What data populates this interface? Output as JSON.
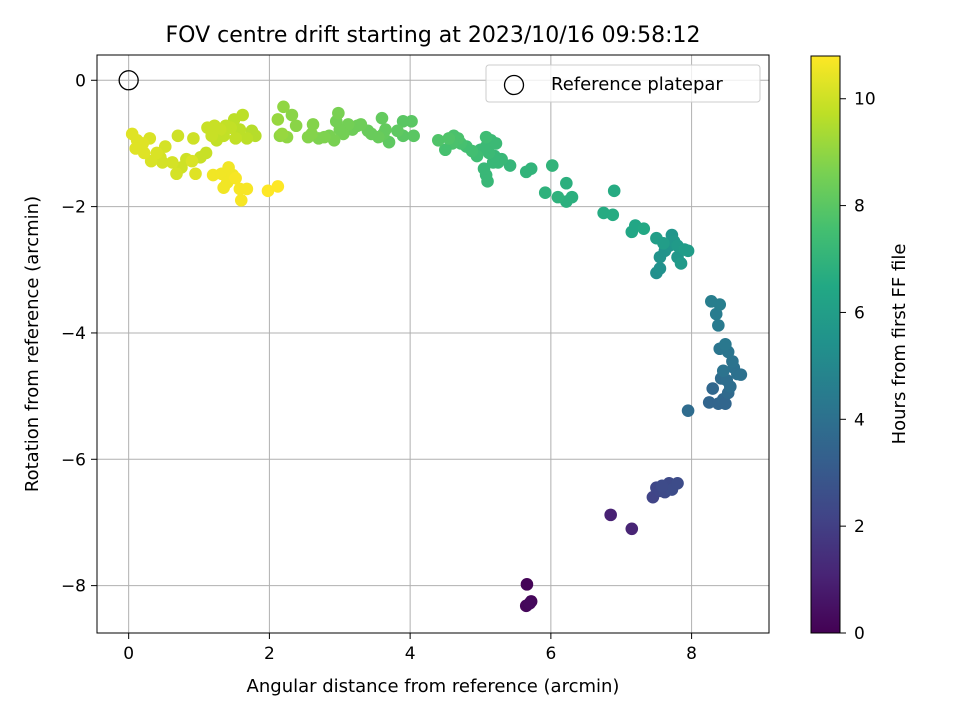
{
  "chart_data": {
    "type": "scatter",
    "title": "FOV centre drift starting at 2023/10/16 09:58:12",
    "xlabel": "Angular distance from reference (arcmin)",
    "ylabel": "Rotation from reference (arcmin)",
    "colorbar_label": "Hours from first FF file",
    "xlim": [
      -0.45,
      9.1
    ],
    "ylim": [
      -8.75,
      0.4
    ],
    "clim": [
      0,
      10.8
    ],
    "xticks": [
      "0",
      "2",
      "4",
      "6",
      "8"
    ],
    "yticks": [
      "0",
      "−2",
      "−4",
      "−6",
      "−8"
    ],
    "cticks": [
      "0",
      "2",
      "4",
      "6",
      "8",
      "10"
    ],
    "grid": true,
    "legend": {
      "position": "top-right",
      "label": "Reference platepar"
    },
    "reference_point": {
      "x": 0,
      "y": 0
    },
    "colormap": "viridis",
    "series": [
      {
        "points": [
          [
            5.66,
            -7.98,
            0.1
          ],
          [
            5.72,
            -8.25,
            0.15
          ],
          [
            5.65,
            -8.32,
            0.2
          ],
          [
            5.7,
            -8.28,
            0.25
          ],
          [
            6.85,
            -6.88,
            1.0
          ],
          [
            7.15,
            -7.1,
            1.1
          ],
          [
            7.45,
            -6.6,
            2.2
          ],
          [
            7.5,
            -6.45,
            2.3
          ],
          [
            7.55,
            -6.5,
            2.3
          ],
          [
            7.62,
            -6.52,
            2.4
          ],
          [
            7.68,
            -6.38,
            2.4
          ],
          [
            7.72,
            -6.48,
            2.5
          ],
          [
            7.8,
            -6.38,
            2.5
          ],
          [
            7.58,
            -6.42,
            2.45
          ],
          [
            7.95,
            -5.23,
            3.8
          ],
          [
            8.25,
            -5.1,
            3.5
          ],
          [
            8.3,
            -4.88,
            3.6
          ],
          [
            8.38,
            -5.12,
            3.5
          ],
          [
            8.45,
            -5.05,
            3.6
          ],
          [
            8.48,
            -5.12,
            3.55
          ],
          [
            8.52,
            -4.95,
            3.7
          ],
          [
            8.42,
            -4.72,
            3.8
          ],
          [
            8.5,
            -4.75,
            3.9
          ],
          [
            8.55,
            -4.85,
            3.9
          ],
          [
            8.6,
            -4.55,
            4.0
          ],
          [
            8.65,
            -4.65,
            4.0
          ],
          [
            8.7,
            -4.66,
            4.0
          ],
          [
            8.58,
            -4.45,
            4.1
          ],
          [
            8.45,
            -4.6,
            4.1
          ],
          [
            8.52,
            -4.3,
            4.2
          ],
          [
            8.4,
            -4.25,
            4.2
          ],
          [
            8.48,
            -4.18,
            4.3
          ],
          [
            8.38,
            -3.88,
            4.4
          ],
          [
            8.35,
            -3.7,
            4.5
          ],
          [
            8.4,
            -3.55,
            4.6
          ],
          [
            8.28,
            -3.5,
            4.6
          ],
          [
            7.5,
            -3.05,
            5.3
          ],
          [
            7.55,
            -2.98,
            5.4
          ],
          [
            7.55,
            -2.8,
            5.5
          ],
          [
            7.62,
            -2.7,
            5.5
          ],
          [
            7.68,
            -2.62,
            5.6
          ],
          [
            7.72,
            -2.45,
            5.6
          ],
          [
            7.75,
            -2.55,
            5.7
          ],
          [
            7.8,
            -2.8,
            5.7
          ],
          [
            7.85,
            -2.9,
            5.8
          ],
          [
            7.8,
            -2.62,
            5.8
          ],
          [
            7.9,
            -2.68,
            5.9
          ],
          [
            7.95,
            -2.7,
            5.9
          ],
          [
            7.5,
            -2.5,
            6.0
          ],
          [
            7.6,
            -2.58,
            5.95
          ],
          [
            7.15,
            -2.4,
            6.4
          ],
          [
            7.2,
            -2.3,
            6.4
          ],
          [
            7.32,
            -2.35,
            6.5
          ],
          [
            6.75,
            -2.1,
            6.6
          ],
          [
            6.88,
            -2.13,
            6.6
          ],
          [
            6.9,
            -1.75,
            6.6
          ],
          [
            6.22,
            -1.92,
            6.8
          ],
          [
            6.3,
            -1.85,
            6.8
          ],
          [
            6.22,
            -1.63,
            6.8
          ],
          [
            6.1,
            -1.85,
            6.9
          ],
          [
            5.92,
            -1.78,
            6.9
          ],
          [
            6.02,
            -1.35,
            7.0
          ],
          [
            5.72,
            -1.4,
            7.0
          ],
          [
            5.65,
            -1.45,
            7.0
          ],
          [
            5.42,
            -1.35,
            7.1
          ],
          [
            5.3,
            -1.25,
            7.2
          ],
          [
            5.25,
            -1.3,
            7.2
          ],
          [
            5.1,
            -1.6,
            7.2
          ],
          [
            5.08,
            -1.5,
            7.2
          ],
          [
            5.05,
            -1.4,
            7.2
          ],
          [
            5.18,
            -1.3,
            7.2
          ],
          [
            5.2,
            -1.2,
            7.2
          ],
          [
            5.12,
            -1.15,
            7.3
          ],
          [
            5.0,
            -1.1,
            7.3
          ],
          [
            5.08,
            -1.05,
            7.3
          ],
          [
            5.15,
            -0.95,
            7.3
          ],
          [
            5.22,
            -1.0,
            7.3
          ],
          [
            5.08,
            -0.9,
            7.4
          ],
          [
            4.95,
            -1.2,
            7.4
          ],
          [
            4.88,
            -1.12,
            7.5
          ],
          [
            4.8,
            -1.05,
            7.5
          ],
          [
            4.72,
            -1.0,
            7.6
          ],
          [
            4.68,
            -0.92,
            7.7
          ],
          [
            4.62,
            -0.88,
            7.7
          ],
          [
            4.6,
            -1.0,
            7.7
          ],
          [
            4.5,
            -1.1,
            7.6
          ],
          [
            4.4,
            -0.95,
            7.8
          ],
          [
            4.55,
            -0.92,
            7.8
          ],
          [
            4.05,
            -0.88,
            8.0
          ],
          [
            4.02,
            -0.65,
            8.0
          ],
          [
            3.9,
            -0.65,
            8.0
          ],
          [
            3.9,
            -0.88,
            8.0
          ],
          [
            3.82,
            -0.8,
            8.1
          ],
          [
            3.7,
            -0.98,
            8.1
          ],
          [
            3.62,
            -0.85,
            8.2
          ],
          [
            3.65,
            -0.78,
            8.2
          ],
          [
            3.6,
            -0.6,
            8.2
          ],
          [
            3.55,
            -0.9,
            8.3
          ],
          [
            3.45,
            -0.85,
            8.3
          ],
          [
            3.4,
            -0.8,
            8.3
          ],
          [
            3.3,
            -0.7,
            8.4
          ],
          [
            3.25,
            -0.72,
            8.4
          ],
          [
            3.18,
            -0.78,
            8.4
          ],
          [
            3.12,
            -0.7,
            8.5
          ],
          [
            3.05,
            -0.85,
            8.5
          ],
          [
            3.0,
            -0.78,
            8.5
          ],
          [
            2.95,
            -0.65,
            8.5
          ],
          [
            2.98,
            -0.52,
            8.6
          ],
          [
            2.92,
            -0.95,
            8.6
          ],
          [
            2.85,
            -0.88,
            8.6
          ],
          [
            2.78,
            -0.9,
            8.7
          ],
          [
            2.7,
            -0.92,
            8.7
          ],
          [
            2.6,
            -0.85,
            8.8
          ],
          [
            2.62,
            -0.7,
            8.8
          ],
          [
            2.55,
            -0.9,
            8.8
          ],
          [
            2.38,
            -0.72,
            8.9
          ],
          [
            2.32,
            -0.55,
            8.9
          ],
          [
            2.25,
            -0.9,
            9.0
          ],
          [
            2.2,
            -0.42,
            9.0
          ],
          [
            2.15,
            -0.88,
            9.0
          ],
          [
            2.12,
            -0.62,
            9.1
          ],
          [
            2.18,
            -0.85,
            9.1
          ],
          [
            1.8,
            -0.88,
            9.6
          ],
          [
            1.75,
            -0.8,
            9.6
          ],
          [
            1.68,
            -0.92,
            9.7
          ],
          [
            1.62,
            -0.55,
            9.7
          ],
          [
            1.58,
            -0.78,
            9.7
          ],
          [
            1.52,
            -0.92,
            9.8
          ],
          [
            1.5,
            -0.62,
            9.7
          ],
          [
            1.45,
            -0.75,
            9.8
          ],
          [
            1.38,
            -0.72,
            9.8
          ],
          [
            1.35,
            -0.88,
            9.8
          ],
          [
            1.3,
            -0.78,
            9.9
          ],
          [
            1.25,
            -0.95,
            9.8
          ],
          [
            1.22,
            -0.72,
            9.9
          ],
          [
            1.18,
            -0.88,
            9.9
          ],
          [
            1.12,
            -0.75,
            9.9
          ],
          [
            1.1,
            -1.15,
            9.9
          ],
          [
            1.02,
            -1.22,
            9.9
          ],
          [
            0.92,
            -0.92,
            10.0
          ],
          [
            0.82,
            -1.25,
            10.0
          ],
          [
            0.75,
            -1.38,
            10.0
          ],
          [
            0.7,
            -0.88,
            10.0
          ],
          [
            0.68,
            -1.48,
            10.1
          ],
          [
            0.62,
            -1.3,
            10.1
          ],
          [
            0.52,
            -1.05,
            10.1
          ],
          [
            0.48,
            -1.3,
            10.1
          ],
          [
            0.45,
            -1.22,
            10.1
          ],
          [
            0.4,
            -1.15,
            10.2
          ],
          [
            0.32,
            -1.28,
            10.2
          ],
          [
            0.3,
            -0.92,
            10.2
          ],
          [
            0.22,
            -1.15,
            10.3
          ],
          [
            0.2,
            -1.0,
            10.3
          ],
          [
            0.12,
            -0.95,
            10.3
          ],
          [
            0.1,
            -1.08,
            10.3
          ],
          [
            0.05,
            -0.85,
            10.3
          ],
          [
            0.95,
            -1.48,
            10.3
          ],
          [
            0.9,
            -1.28,
            10.2
          ],
          [
            1.2,
            -1.5,
            10.6
          ],
          [
            1.32,
            -1.48,
            10.6
          ],
          [
            1.35,
            -1.7,
            10.6
          ],
          [
            1.4,
            -1.62,
            10.6
          ],
          [
            1.42,
            -1.38,
            10.6
          ],
          [
            1.48,
            -1.5,
            10.6
          ],
          [
            1.52,
            -1.55,
            10.7
          ],
          [
            1.58,
            -1.72,
            10.7
          ],
          [
            1.6,
            -1.9,
            10.7
          ],
          [
            1.68,
            -1.72,
            10.7
          ],
          [
            1.98,
            -1.75,
            10.8
          ],
          [
            2.12,
            -1.68,
            10.8
          ]
        ]
      }
    ]
  }
}
